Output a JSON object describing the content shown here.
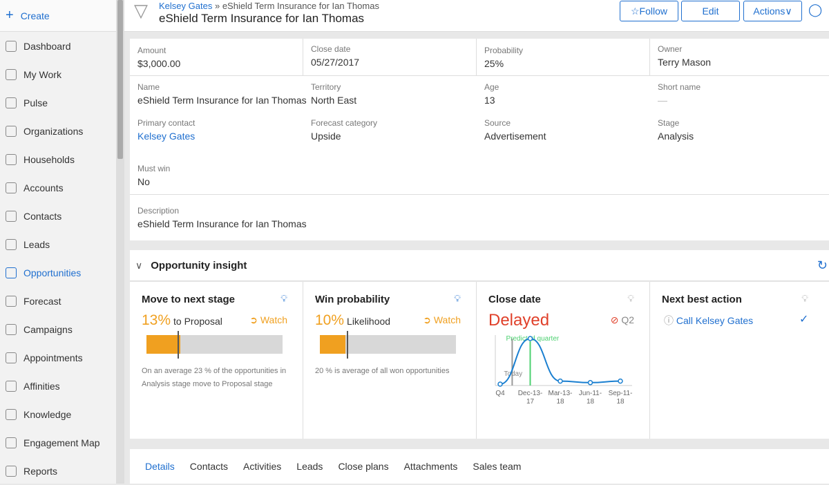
{
  "sidebar": {
    "create": "Create",
    "items": [
      {
        "label": "Dashboard",
        "icon": "dashboard-icon"
      },
      {
        "label": "My Work",
        "icon": "inbox-icon"
      },
      {
        "label": "Pulse",
        "icon": "chat-icon"
      },
      {
        "label": "Organizations",
        "icon": "building-icon"
      },
      {
        "label": "Households",
        "icon": "house-icon"
      },
      {
        "label": "Accounts",
        "icon": "folder-icon"
      },
      {
        "label": "Contacts",
        "icon": "contact-icon"
      },
      {
        "label": "Leads",
        "icon": "pencil-icon"
      },
      {
        "label": "Opportunities",
        "icon": "funnel-icon",
        "active": true
      },
      {
        "label": "Forecast",
        "icon": "pie-icon"
      },
      {
        "label": "Campaigns",
        "icon": "megaphone-icon"
      },
      {
        "label": "Appointments",
        "icon": "calendar-icon"
      },
      {
        "label": "Affinities",
        "icon": "magnet-icon"
      },
      {
        "label": "Knowledge",
        "icon": "globe-icon"
      },
      {
        "label": "Engagement Map",
        "icon": "map-icon"
      },
      {
        "label": "Reports",
        "icon": "chart-icon"
      }
    ]
  },
  "header": {
    "breadcrumb_parent": "Kelsey Gates",
    "breadcrumb_sep": "»",
    "breadcrumb_current": "eShield Term Insurance for Ian Thomas",
    "title": "eShield Term Insurance for Ian Thomas",
    "follow": "☆Follow",
    "edit": "Edit",
    "actions": "Actions∨"
  },
  "details": {
    "amount_label": "Amount",
    "amount": "$3,000.00",
    "close_label": "Close date",
    "close": "05/27/2017",
    "prob_label": "Probability",
    "prob": "25%",
    "owner_label": "Owner",
    "owner": "Terry Mason",
    "name_label": "Name",
    "name": "eShield Term Insurance for Ian Thomas",
    "territory_label": "Territory",
    "territory": "North East",
    "age_label": "Age",
    "age": "13",
    "short_label": "Short name",
    "short": "—",
    "contact_label": "Primary contact",
    "contact": "Kelsey Gates",
    "forecast_label": "Forecast category",
    "forecast": "Upside",
    "source_label": "Source",
    "source": "Advertisement",
    "stage_label": "Stage",
    "stage": "Analysis",
    "mustwin_label": "Must win",
    "mustwin": "No",
    "desc_label": "Description",
    "desc": "eShield Term Insurance for Ian Thomas"
  },
  "insight": {
    "title": "Opportunity insight",
    "next_stage": {
      "title": "Move to next stage",
      "pct": "13%",
      "to": "to  Proposal",
      "watch": "Watch",
      "fill": 0.13,
      "avg": 0.23,
      "note": "On an average 23 % of the opportunities in Analysis   stage move to Proposal  stage"
    },
    "win": {
      "title": "Win probability",
      "pct": "10%",
      "to": "Likelihood",
      "watch": "Watch",
      "fill": 0.1,
      "avg": 0.2,
      "note": "20 % is  average of all won opportunities"
    },
    "close": {
      "title": "Close date",
      "status": "Delayed",
      "quarter": "Q2",
      "predicted": "Predicted quarter",
      "today": "Today"
    },
    "nba": {
      "title": "Next best action",
      "action": "Call Kelsey Gates"
    }
  },
  "chart_data": {
    "type": "line",
    "categories": [
      "Q4",
      "Dec-13-17",
      "Mar-13-18",
      "Jun-11-18",
      "Sep-11-18"
    ],
    "values": [
      0.0,
      0.3,
      0.02,
      0.01,
      0.02
    ],
    "markers": [
      {
        "label": "Today",
        "x": 0.4
      },
      {
        "label": "Predicted quarter",
        "x": 1
      }
    ],
    "colors": {
      "line": "#1a7fd0",
      "predicted": "#4cd070",
      "today": "#999999"
    }
  },
  "tabs": [
    "Details",
    "Contacts",
    "Activities",
    "Leads",
    "Close plans",
    "Attachments",
    "Sales team"
  ],
  "colors": {
    "accent": "#1f6fcf",
    "warning": "#f0a020",
    "danger": "#e0402a"
  }
}
